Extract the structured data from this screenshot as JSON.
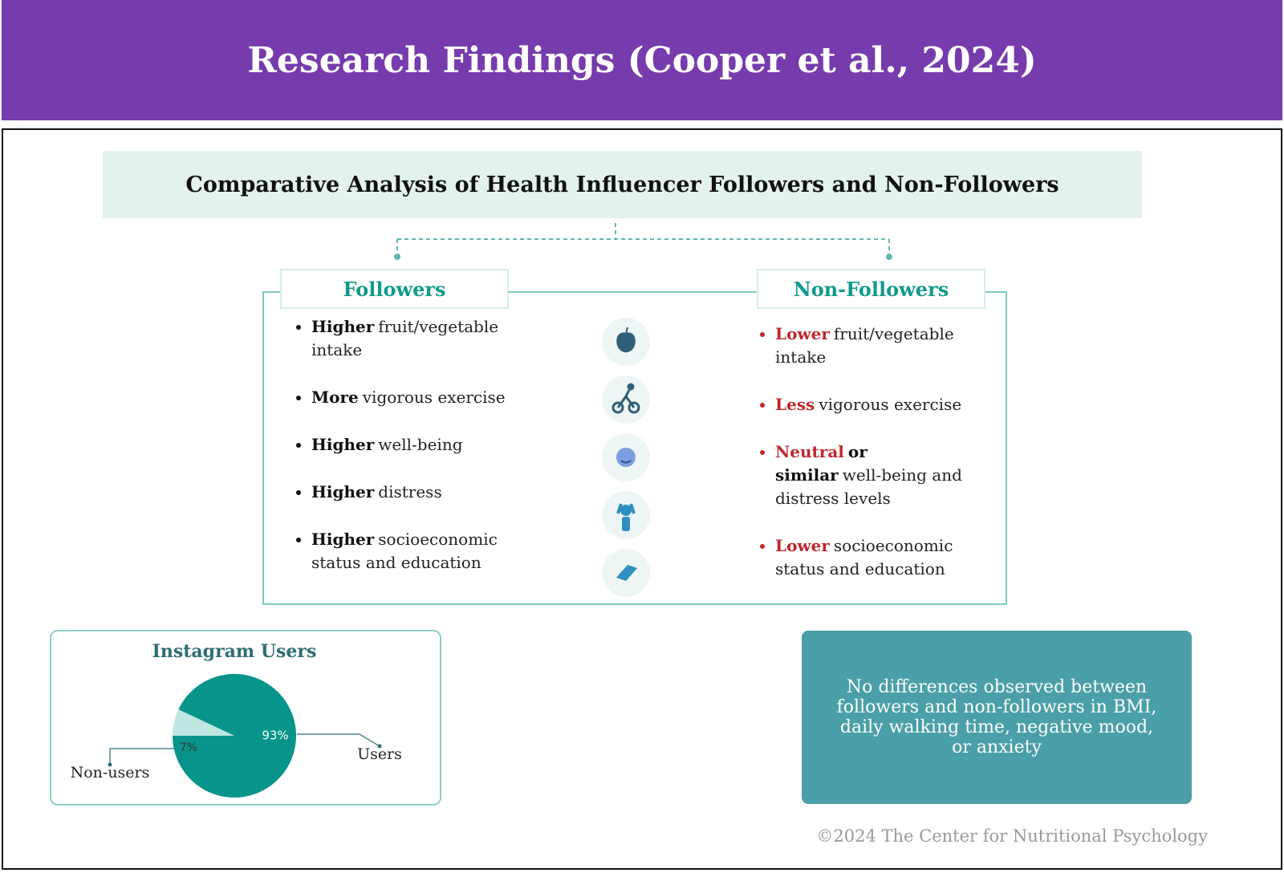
{
  "header": {
    "title": "Research Findings (Cooper et al., 2024)"
  },
  "subtitle": "Comparative Analysis of Health Influencer Followers and Non-Followers",
  "columns": [
    {
      "heading": "Followers",
      "emphasis_color": "#111111",
      "items": [
        {
          "key": "Higher",
          "text": "fruit/vegetable intake"
        },
        {
          "key": "More",
          "text": "vigorous exercise"
        },
        {
          "key": "Higher",
          "text": "well-being"
        },
        {
          "key": "Higher",
          "text": "distress"
        },
        {
          "key": "Higher",
          "text": "socioeconomic status and education"
        }
      ]
    },
    {
      "heading": "Non-Followers",
      "emphasis_color": "#c0282d",
      "items": [
        {
          "key": "Lower",
          "text": "fruit/vegetable intake"
        },
        {
          "key": "Less",
          "text": "vigorous exercise"
        },
        {
          "key": "Neutral",
          "extra": "or similar",
          "text": "well-being and distress levels"
        },
        {
          "key": "Lower",
          "text": "socioeconomic status and education"
        }
      ]
    }
  ],
  "chart_data": {
    "type": "pie",
    "title": "Instagram Users",
    "categories": [
      "Users",
      "Non-users"
    ],
    "values": [
      93,
      7
    ],
    "value_labels": [
      "93%",
      "7%"
    ],
    "colors": [
      "#07948a",
      "#bfe6e1"
    ]
  },
  "note": "No differences observed between followers and non-followers in BMI, daily walking time, negative mood, or anxiety",
  "footer": "©2024 The Center for Nutritional Psychology"
}
